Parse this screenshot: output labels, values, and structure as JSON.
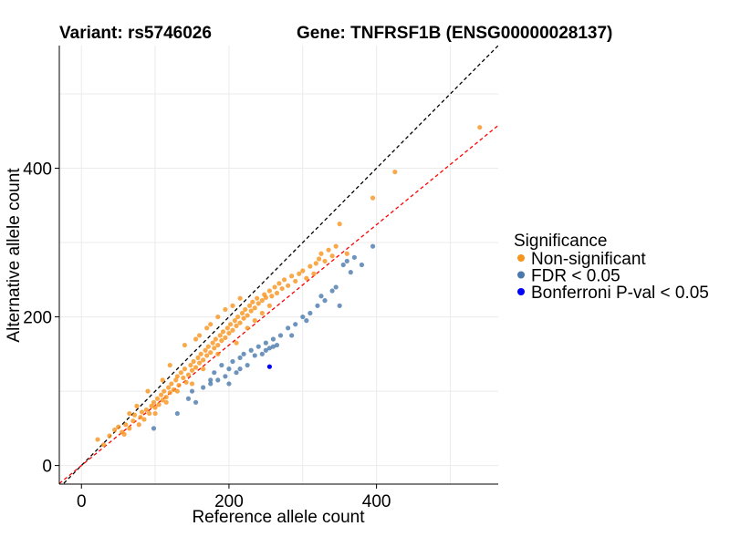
{
  "title_left": "Variant: rs5746026",
  "title_right": "Gene: TNFRSF1B (ENSG00000028137)",
  "chart_data": {
    "type": "scatter",
    "xlabel": "Reference allele count",
    "ylabel": "Alternative allele count",
    "xlim": [
      -30,
      565
    ],
    "ylim": [
      -25,
      565
    ],
    "x_ticks": [
      0,
      200,
      400
    ],
    "y_ticks": [
      0,
      200,
      400
    ],
    "grid": true,
    "legend_position": "right",
    "legend_title": "Significance",
    "reference_lines": [
      {
        "kind": "identity",
        "slope": 1.0,
        "intercept": 0,
        "color": "#000000",
        "dash": true
      },
      {
        "kind": "fit",
        "slope": 0.81,
        "intercept": 0,
        "color": "#ff0000",
        "dash": true
      }
    ],
    "series": [
      {
        "name": "Non-significant",
        "color": "#f7941d",
        "points": [
          [
            22,
            35
          ],
          [
            30,
            28
          ],
          [
            38,
            40
          ],
          [
            45,
            48
          ],
          [
            50,
            52
          ],
          [
            55,
            45
          ],
          [
            58,
            42
          ],
          [
            60,
            55
          ],
          [
            65,
            50
          ],
          [
            70,
            60
          ],
          [
            72,
            68
          ],
          [
            78,
            55
          ],
          [
            80,
            65
          ],
          [
            82,
            72
          ],
          [
            85,
            62
          ],
          [
            88,
            75
          ],
          [
            92,
            70
          ],
          [
            95,
            80
          ],
          [
            98,
            85
          ],
          [
            100,
            78
          ],
          [
            103,
            90
          ],
          [
            105,
            82
          ],
          [
            108,
            95
          ],
          [
            110,
            88
          ],
          [
            112,
            100
          ],
          [
            115,
            92
          ],
          [
            118,
            105
          ],
          [
            120,
            98
          ],
          [
            122,
            110
          ],
          [
            125,
            102
          ],
          [
            128,
            115
          ],
          [
            130,
            120
          ],
          [
            132,
            108
          ],
          [
            135,
            125
          ],
          [
            138,
            118
          ],
          [
            140,
            130
          ],
          [
            142,
            112
          ],
          [
            145,
            122
          ],
          [
            148,
            135
          ],
          [
            150,
            128
          ],
          [
            152,
            140
          ],
          [
            155,
            132
          ],
          [
            158,
            145
          ],
          [
            160,
            138
          ],
          [
            162,
            150
          ],
          [
            165,
            142
          ],
          [
            168,
            155
          ],
          [
            170,
            148
          ],
          [
            172,
            160
          ],
          [
            175,
            152
          ],
          [
            178,
            165
          ],
          [
            180,
            158
          ],
          [
            182,
            170
          ],
          [
            185,
            162
          ],
          [
            188,
            175
          ],
          [
            190,
            168
          ],
          [
            192,
            180
          ],
          [
            195,
            172
          ],
          [
            198,
            185
          ],
          [
            200,
            178
          ],
          [
            202,
            190
          ],
          [
            205,
            182
          ],
          [
            208,
            195
          ],
          [
            210,
            188
          ],
          [
            212,
            200
          ],
          [
            215,
            192
          ],
          [
            218,
            205
          ],
          [
            220,
            198
          ],
          [
            222,
            210
          ],
          [
            225,
            202
          ],
          [
            228,
            215
          ],
          [
            230,
            208
          ],
          [
            232,
            220
          ],
          [
            235,
            212
          ],
          [
            238,
            225
          ],
          [
            240,
            218
          ],
          [
            245,
            222
          ],
          [
            248,
            230
          ],
          [
            250,
            226
          ],
          [
            255,
            235
          ],
          [
            258,
            228
          ],
          [
            262,
            240
          ],
          [
            265,
            232
          ],
          [
            268,
            245
          ],
          [
            272,
            238
          ],
          [
            275,
            250
          ],
          [
            280,
            242
          ],
          [
            285,
            255
          ],
          [
            290,
            248
          ],
          [
            295,
            258
          ],
          [
            300,
            262
          ],
          [
            305,
            252
          ],
          [
            310,
            268
          ],
          [
            315,
            258
          ],
          [
            318,
            272
          ],
          [
            322,
            278
          ],
          [
            325,
            285
          ],
          [
            330,
            275
          ],
          [
            335,
            290
          ],
          [
            340,
            282
          ],
          [
            345,
            295
          ],
          [
            350,
            325
          ],
          [
            360,
            285
          ],
          [
            395,
            360
          ],
          [
            425,
            395
          ],
          [
            540,
            455
          ],
          [
            140,
            162
          ],
          [
            160,
            175
          ],
          [
            175,
            190
          ],
          [
            185,
            200
          ],
          [
            195,
            210
          ],
          [
            150,
            110
          ],
          [
            130,
            100
          ],
          [
            115,
            85
          ],
          [
            100,
            70
          ],
          [
            210,
            165
          ],
          [
            225,
            185
          ],
          [
            205,
            215
          ],
          [
            215,
            225
          ],
          [
            155,
            170
          ],
          [
            170,
            185
          ],
          [
            120,
            135
          ],
          [
            90,
            100
          ],
          [
            75,
            80
          ],
          [
            65,
            70
          ],
          [
            110,
            115
          ],
          [
            245,
            205
          ],
          [
            255,
            215
          ],
          [
            235,
            195
          ],
          [
            185,
            150
          ],
          [
            165,
            130
          ]
        ]
      },
      {
        "name": "FDR < 0.05",
        "color": "#4a79ad",
        "points": [
          [
            98,
            50
          ],
          [
            130,
            70
          ],
          [
            145,
            90
          ],
          [
            150,
            100
          ],
          [
            155,
            85
          ],
          [
            165,
            105
          ],
          [
            175,
            110
          ],
          [
            180,
            125
          ],
          [
            185,
            115
          ],
          [
            190,
            135
          ],
          [
            195,
            120
          ],
          [
            200,
            130
          ],
          [
            205,
            140
          ],
          [
            210,
            125
          ],
          [
            215,
            145
          ],
          [
            220,
            150
          ],
          [
            225,
            135
          ],
          [
            230,
            155
          ],
          [
            235,
            148
          ],
          [
            240,
            160
          ],
          [
            245,
            150
          ],
          [
            250,
            165
          ],
          [
            255,
            158
          ],
          [
            260,
            170
          ],
          [
            265,
            162
          ],
          [
            270,
            175
          ],
          [
            280,
            185
          ],
          [
            285,
            175
          ],
          [
            290,
            190
          ],
          [
            300,
            200
          ],
          [
            305,
            195
          ],
          [
            310,
            205
          ],
          [
            320,
            215
          ],
          [
            325,
            228
          ],
          [
            330,
            222
          ],
          [
            340,
            235
          ],
          [
            345,
            240
          ],
          [
            350,
            215
          ],
          [
            355,
            270
          ],
          [
            360,
            275
          ],
          [
            365,
            260
          ],
          [
            370,
            280
          ],
          [
            380,
            270
          ],
          [
            395,
            295
          ],
          [
            175,
            115
          ],
          [
            215,
            130
          ],
          [
            250,
            155
          ],
          [
            260,
            160
          ],
          [
            200,
            110
          ]
        ]
      },
      {
        "name": "Bonferroni P-val < 0.05",
        "color": "#0000ff",
        "points": [
          [
            255,
            133
          ]
        ]
      }
    ]
  }
}
